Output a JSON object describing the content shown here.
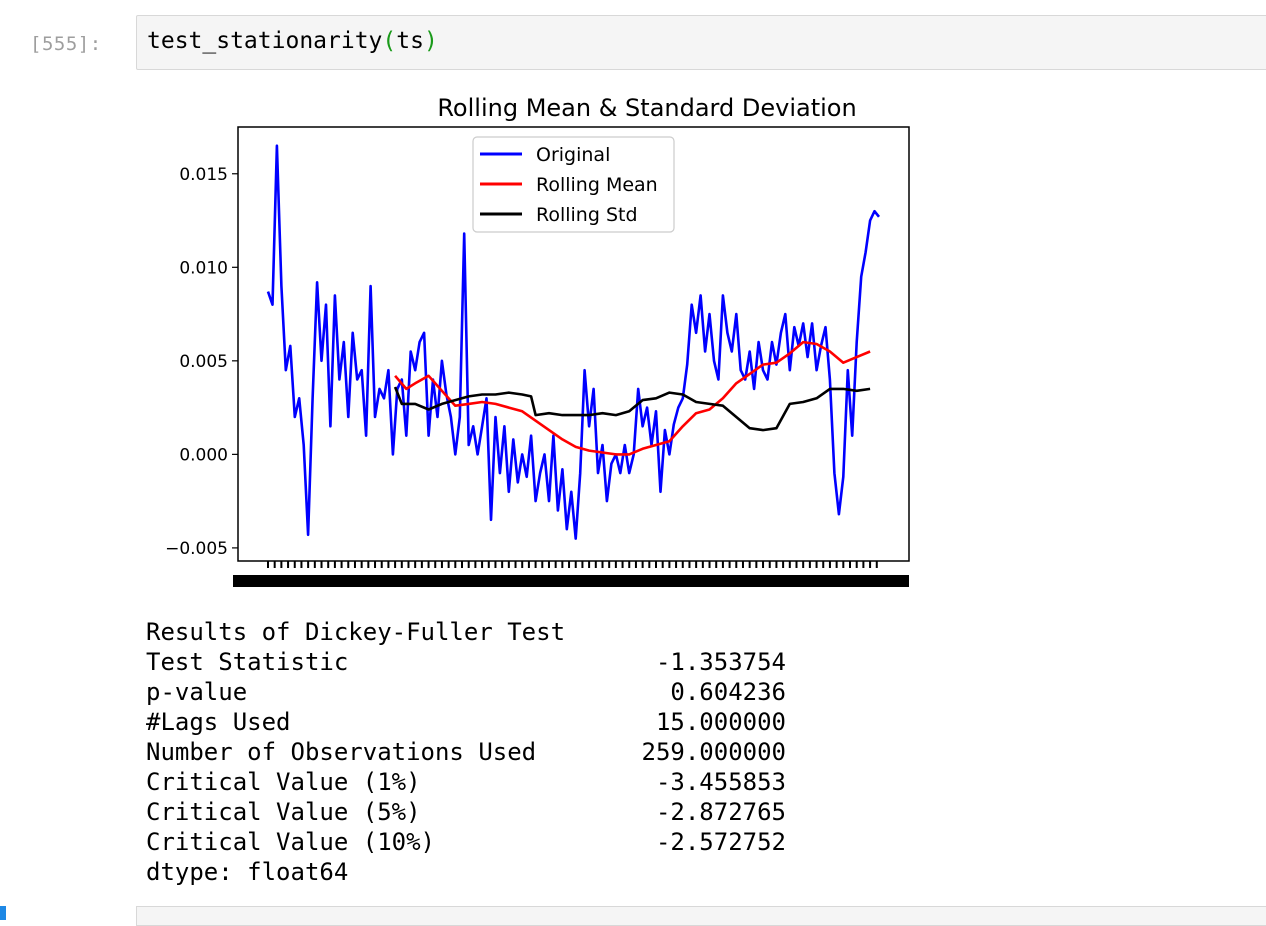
{
  "cell": {
    "prompt": "[555]:",
    "code_func": "test_stationarity",
    "code_open": "(",
    "code_arg": "ts",
    "code_close": ")"
  },
  "chart_data": {
    "type": "line",
    "title": "Rolling Mean & Standard Deviation",
    "xlabel": "",
    "ylabel": "",
    "ylim": [
      -0.0057,
      0.0175
    ],
    "yticks": [
      -0.005,
      0.0,
      0.005,
      0.01,
      0.015
    ],
    "ytick_labels": [
      "−0.005",
      "0.000",
      "0.005",
      "0.010",
      "0.015"
    ],
    "n_points": 275,
    "legend_position": "top-center",
    "series": [
      {
        "name": "Original",
        "color": "#0000ff",
        "points": [
          [
            0,
            0.0087
          ],
          [
            2,
            0.008
          ],
          [
            4,
            0.0165
          ],
          [
            6,
            0.009
          ],
          [
            8,
            0.0045
          ],
          [
            10,
            0.0058
          ],
          [
            12,
            0.002
          ],
          [
            14,
            0.003
          ],
          [
            16,
            0.0005
          ],
          [
            18,
            -0.0043
          ],
          [
            20,
            0.003
          ],
          [
            22,
            0.0092
          ],
          [
            24,
            0.005
          ],
          [
            26,
            0.008
          ],
          [
            28,
            0.0015
          ],
          [
            30,
            0.0085
          ],
          [
            32,
            0.004
          ],
          [
            34,
            0.006
          ],
          [
            36,
            0.002
          ],
          [
            38,
            0.0065
          ],
          [
            40,
            0.004
          ],
          [
            42,
            0.0045
          ],
          [
            44,
            0.001
          ],
          [
            46,
            0.009
          ],
          [
            48,
            0.002
          ],
          [
            50,
            0.0035
          ],
          [
            52,
            0.003
          ],
          [
            54,
            0.0045
          ],
          [
            56,
            0.0
          ],
          [
            58,
            0.0035
          ],
          [
            60,
            0.004
          ],
          [
            62,
            0.001
          ],
          [
            64,
            0.0055
          ],
          [
            66,
            0.0045
          ],
          [
            68,
            0.006
          ],
          [
            70,
            0.0065
          ],
          [
            72,
            0.001
          ],
          [
            74,
            0.004
          ],
          [
            76,
            0.002
          ],
          [
            78,
            0.005
          ],
          [
            80,
            0.0032
          ],
          [
            82,
            0.002
          ],
          [
            84,
            0.0
          ],
          [
            86,
            0.002
          ],
          [
            88,
            0.0118
          ],
          [
            90,
            0.0005
          ],
          [
            92,
            0.0015
          ],
          [
            94,
            0.0
          ],
          [
            96,
            0.0015
          ],
          [
            98,
            0.003
          ],
          [
            100,
            -0.0035
          ],
          [
            102,
            0.002
          ],
          [
            104,
            -0.001
          ],
          [
            106,
            0.0015
          ],
          [
            108,
            -0.002
          ],
          [
            110,
            0.0008
          ],
          [
            112,
            -0.0015
          ],
          [
            114,
            0.0
          ],
          [
            116,
            -0.0012
          ],
          [
            118,
            0.001
          ],
          [
            120,
            -0.0025
          ],
          [
            122,
            -0.001
          ],
          [
            124,
            0.0
          ],
          [
            126,
            -0.0025
          ],
          [
            128,
            0.001
          ],
          [
            130,
            -0.003
          ],
          [
            132,
            -0.0008
          ],
          [
            134,
            -0.004
          ],
          [
            136,
            -0.002
          ],
          [
            138,
            -0.0045
          ],
          [
            140,
            -0.001
          ],
          [
            142,
            0.0045
          ],
          [
            144,
            0.0015
          ],
          [
            146,
            0.0035
          ],
          [
            148,
            -0.001
          ],
          [
            150,
            0.0005
          ],
          [
            152,
            -0.0025
          ],
          [
            154,
            -0.0005
          ],
          [
            156,
            0.0
          ],
          [
            158,
            -0.001
          ],
          [
            160,
            0.0005
          ],
          [
            162,
            -0.001
          ],
          [
            164,
            0.0
          ],
          [
            166,
            0.0035
          ],
          [
            168,
            0.0015
          ],
          [
            170,
            0.0025
          ],
          [
            172,
            0.0005
          ],
          [
            174,
            0.0023
          ],
          [
            176,
            -0.002
          ],
          [
            178,
            0.0013
          ],
          [
            180,
            0.0
          ],
          [
            182,
            0.0016
          ],
          [
            184,
            0.0025
          ],
          [
            186,
            0.003
          ],
          [
            188,
            0.0048
          ],
          [
            190,
            0.008
          ],
          [
            192,
            0.0065
          ],
          [
            194,
            0.0085
          ],
          [
            196,
            0.0055
          ],
          [
            198,
            0.0075
          ],
          [
            200,
            0.005
          ],
          [
            202,
            0.004
          ],
          [
            204,
            0.0085
          ],
          [
            206,
            0.0065
          ],
          [
            208,
            0.0055
          ],
          [
            210,
            0.0075
          ],
          [
            212,
            0.0045
          ],
          [
            214,
            0.004
          ],
          [
            216,
            0.0055
          ],
          [
            218,
            0.0035
          ],
          [
            220,
            0.006
          ],
          [
            222,
            0.0045
          ],
          [
            224,
            0.004
          ],
          [
            226,
            0.006
          ],
          [
            228,
            0.0048
          ],
          [
            230,
            0.0065
          ],
          [
            232,
            0.0075
          ],
          [
            234,
            0.0045
          ],
          [
            236,
            0.0068
          ],
          [
            238,
            0.0058
          ],
          [
            240,
            0.007
          ],
          [
            242,
            0.0052
          ],
          [
            244,
            0.007
          ],
          [
            246,
            0.0045
          ],
          [
            248,
            0.0058
          ],
          [
            250,
            0.0068
          ],
          [
            252,
            0.004
          ],
          [
            254,
            -0.001
          ],
          [
            256,
            -0.0032
          ],
          [
            258,
            -0.0012
          ],
          [
            260,
            0.0045
          ],
          [
            262,
            0.001
          ],
          [
            264,
            0.006
          ],
          [
            266,
            0.0095
          ],
          [
            268,
            0.0108
          ],
          [
            270,
            0.0125
          ],
          [
            272,
            0.013
          ],
          [
            274,
            0.0127
          ]
        ]
      },
      {
        "name": "Rolling Mean",
        "color": "#ff0000",
        "points": [
          [
            57,
            0.0042
          ],
          [
            62,
            0.0035
          ],
          [
            66,
            0.0038
          ],
          [
            72,
            0.0042
          ],
          [
            78,
            0.0034
          ],
          [
            84,
            0.0026
          ],
          [
            90,
            0.0027
          ],
          [
            96,
            0.0028
          ],
          [
            102,
            0.0027
          ],
          [
            108,
            0.0025
          ],
          [
            114,
            0.0023
          ],
          [
            120,
            0.0018
          ],
          [
            126,
            0.0013
          ],
          [
            132,
            0.0008
          ],
          [
            138,
            0.0004
          ],
          [
            144,
            0.0002
          ],
          [
            150,
            0.0001
          ],
          [
            156,
            0.0
          ],
          [
            162,
            0.0
          ],
          [
            168,
            0.0003
          ],
          [
            174,
            0.0005
          ],
          [
            180,
            0.0007
          ],
          [
            186,
            0.0015
          ],
          [
            192,
            0.0022
          ],
          [
            198,
            0.0024
          ],
          [
            204,
            0.003
          ],
          [
            210,
            0.0038
          ],
          [
            216,
            0.0043
          ],
          [
            222,
            0.0048
          ],
          [
            228,
            0.0049
          ],
          [
            234,
            0.0054
          ],
          [
            240,
            0.006
          ],
          [
            246,
            0.0059
          ],
          [
            252,
            0.0055
          ],
          [
            258,
            0.0049
          ],
          [
            264,
            0.0052
          ],
          [
            270,
            0.0055
          ]
        ]
      },
      {
        "name": "Rolling Std",
        "color": "#000000",
        "points": [
          [
            57,
            0.0036
          ],
          [
            60,
            0.0027
          ],
          [
            66,
            0.0027
          ],
          [
            72,
            0.0024
          ],
          [
            78,
            0.0027
          ],
          [
            84,
            0.0029
          ],
          [
            90,
            0.0031
          ],
          [
            96,
            0.0032
          ],
          [
            102,
            0.0032
          ],
          [
            108,
            0.0033
          ],
          [
            114,
            0.0032
          ],
          [
            118,
            0.0031
          ],
          [
            120,
            0.0021
          ],
          [
            126,
            0.0022
          ],
          [
            132,
            0.0021
          ],
          [
            144,
            0.0021
          ],
          [
            150,
            0.0022
          ],
          [
            156,
            0.0021
          ],
          [
            162,
            0.0023
          ],
          [
            168,
            0.0029
          ],
          [
            174,
            0.003
          ],
          [
            180,
            0.0033
          ],
          [
            186,
            0.0032
          ],
          [
            192,
            0.0028
          ],
          [
            198,
            0.0027
          ],
          [
            204,
            0.0026
          ],
          [
            210,
            0.002
          ],
          [
            216,
            0.0014
          ],
          [
            222,
            0.0013
          ],
          [
            228,
            0.0014
          ],
          [
            234,
            0.0027
          ],
          [
            240,
            0.0028
          ],
          [
            246,
            0.003
          ],
          [
            252,
            0.0035
          ],
          [
            258,
            0.0035
          ],
          [
            264,
            0.0034
          ],
          [
            270,
            0.0035
          ]
        ]
      }
    ]
  },
  "df_output": {
    "heading": "Results of Dickey-Fuller Test",
    "rows": [
      {
        "label": "Test Statistic",
        "value": "-1.353754"
      },
      {
        "label": "p-value",
        "value": "0.604236"
      },
      {
        "label": "#Lags Used",
        "value": "15.000000"
      },
      {
        "label": "Number of Observations Used",
        "value": "259.000000"
      },
      {
        "label": "Critical Value (1%)",
        "value": "-3.455853"
      },
      {
        "label": "Critical Value (5%)",
        "value": "-2.872765"
      },
      {
        "label": "Critical Value (10%)",
        "value": "-2.572752"
      }
    ],
    "dtype": "dtype: float64"
  }
}
